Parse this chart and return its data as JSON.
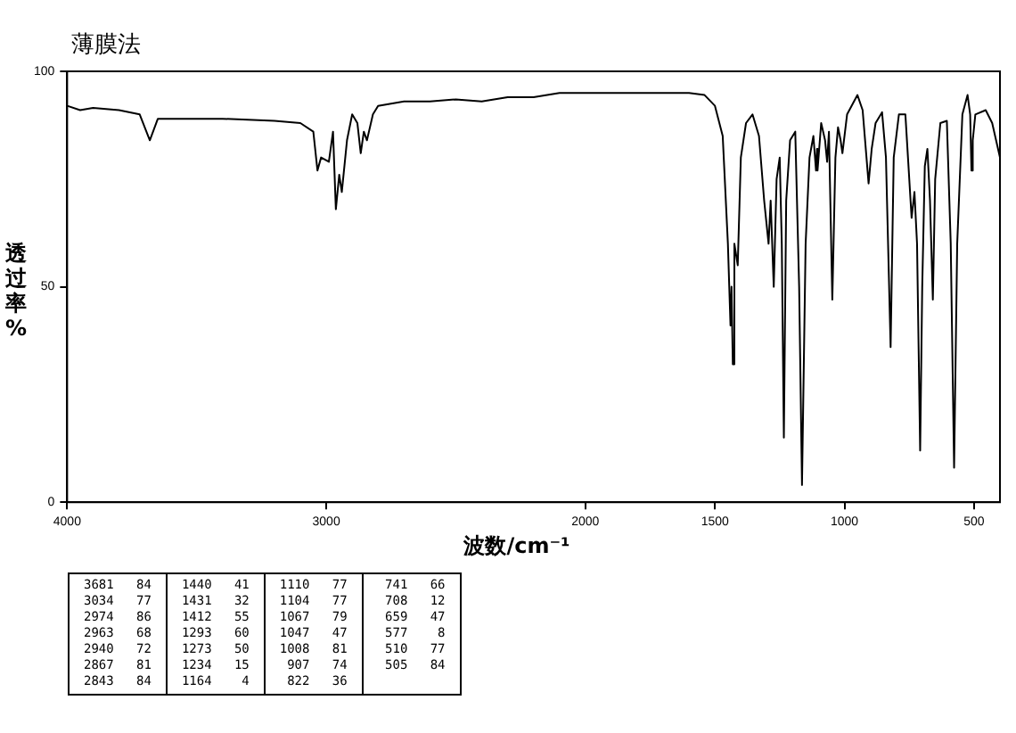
{
  "chart_data": {
    "type": "line",
    "title": "薄膜法",
    "xlabel": "波数/cm⁻¹",
    "ylabel": "透过率%",
    "x": [
      4000,
      3950,
      3900,
      3800,
      3720,
      3681,
      3650,
      3600,
      3400,
      3200,
      3100,
      3050,
      3034,
      3020,
      2990,
      2974,
      2963,
      2950,
      2940,
      2920,
      2900,
      2880,
      2867,
      2855,
      2843,
      2820,
      2800,
      2700,
      2600,
      2500,
      2400,
      2300,
      2200,
      2100,
      2000,
      1900,
      1800,
      1700,
      1600,
      1540,
      1500,
      1470,
      1450,
      1440,
      1436,
      1431,
      1425,
      1412,
      1400,
      1380,
      1355,
      1330,
      1310,
      1293,
      1285,
      1273,
      1262,
      1250,
      1242,
      1234,
      1225,
      1210,
      1190,
      1175,
      1164,
      1150,
      1135,
      1120,
      1110,
      1106,
      1104,
      1090,
      1075,
      1067,
      1060,
      1047,
      1035,
      1025,
      1015,
      1008,
      990,
      950,
      930,
      907,
      895,
      880,
      855,
      840,
      822,
      810,
      790,
      765,
      755,
      741,
      730,
      720,
      708,
      700,
      690,
      680,
      670,
      659,
      650,
      630,
      605,
      590,
      577,
      565,
      545,
      525,
      515,
      510,
      505,
      495,
      455,
      430,
      400
    ],
    "series": [
      {
        "color": "#000000",
        "values": [
          92,
          91,
          91.5,
          91,
          90,
          84,
          89,
          89,
          89,
          88.5,
          88,
          86,
          77,
          80,
          79,
          86,
          68,
          76,
          72,
          84,
          90,
          88,
          81,
          86,
          84,
          90,
          92,
          93,
          93,
          93.5,
          93,
          94,
          94,
          95,
          95,
          95,
          95,
          95,
          95,
          94.5,
          92,
          85,
          60,
          41,
          50,
          32,
          60,
          55,
          80,
          88,
          90,
          85,
          70,
          60,
          70,
          50,
          75,
          80,
          60,
          15,
          70,
          84,
          86,
          50,
          4,
          60,
          80,
          85,
          77,
          82,
          77,
          88,
          84,
          79,
          86,
          47,
          80,
          87,
          84,
          81,
          90,
          94.5,
          91,
          74,
          82,
          88,
          90.5,
          80,
          36,
          80,
          90,
          90,
          80,
          66,
          72,
          60,
          12,
          50,
          78,
          82,
          70,
          47,
          75,
          88,
          88.5,
          60,
          8,
          60,
          90,
          94.5,
          90,
          77,
          84,
          90,
          91,
          88,
          80
        ]
      }
    ],
    "xlim": [
      4000,
      400
    ],
    "xticks": [
      4000,
      3000,
      2000,
      1500,
      1000,
      500
    ],
    "ylim": [
      0,
      100
    ],
    "yticks": [
      0,
      50,
      100
    ],
    "grid": false,
    "legend": false,
    "marker": "none",
    "line_style": "solid",
    "annotations": [
      "3681 84",
      "3034 77",
      "2974 86",
      "2963 68",
      "2940 72",
      "2867 81",
      "2843 84",
      "1440 41",
      "1431 32",
      "1412 55",
      "1293 60",
      "1273 50",
      "1234 15",
      "1164 4",
      "1110 77",
      "1104 77",
      "1067 79",
      "1047 47",
      "1008 81",
      "907 74",
      "822 36",
      "741 66",
      "708 12",
      "659 47",
      "577 8",
      "510 77",
      "505 84"
    ]
  }
}
